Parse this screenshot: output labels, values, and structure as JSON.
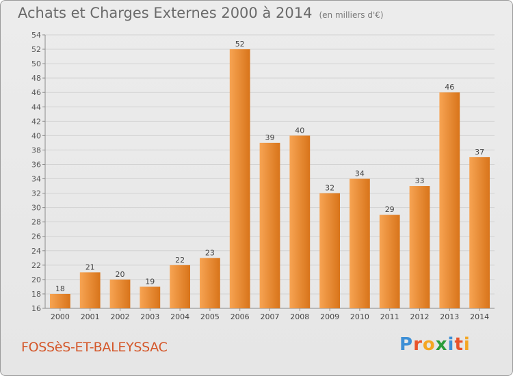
{
  "header": {
    "title": "Achats et Charges Externes 2000 à 2014",
    "subtitle": "(en milliers d'€)"
  },
  "footer": {
    "city": "FOSSèS-ET-BALEYSSAC",
    "logo_letters": [
      "P",
      "r",
      "o",
      "x",
      "i",
      "t",
      "i"
    ],
    "logo_colors": [
      "#3d8fd6",
      "#e8522a",
      "#f4a623",
      "#2a9d3a",
      "#3d8fd6",
      "#e8522a",
      "#f4a623"
    ]
  },
  "chart_data": {
    "type": "bar",
    "title": "Achats et Charges Externes 2000 à 2014",
    "subtitle": "(en milliers d'€)",
    "categories": [
      "2000",
      "2001",
      "2002",
      "2003",
      "2004",
      "2005",
      "2006",
      "2007",
      "2008",
      "2009",
      "2010",
      "2011",
      "2012",
      "2013",
      "2014"
    ],
    "values": [
      18,
      21,
      20,
      19,
      22,
      23,
      52,
      39,
      40,
      32,
      34,
      29,
      33,
      46,
      37
    ],
    "ylim": [
      16,
      54
    ],
    "yticks": [
      16,
      18,
      20,
      22,
      24,
      26,
      28,
      30,
      32,
      34,
      36,
      38,
      40,
      42,
      44,
      46,
      48,
      50,
      52,
      54
    ],
    "grid": true,
    "bar_color_light": "#f7a453",
    "bar_color_dark": "#d8741a"
  }
}
